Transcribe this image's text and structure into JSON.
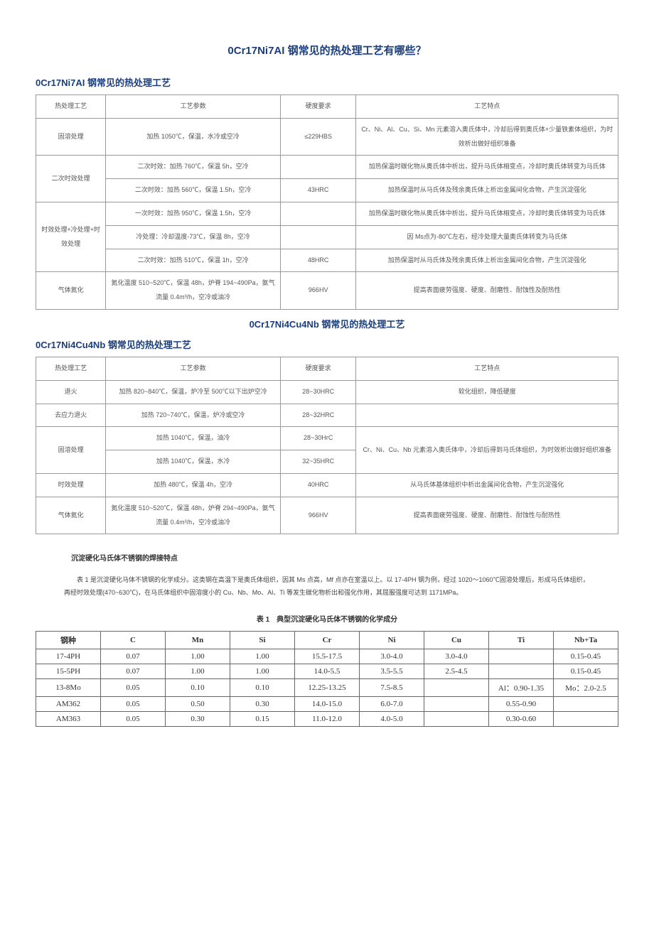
{
  "main_title": "0Cr17Ni7AI 钢常见的热处理工艺有哪些？",
  "section1_title": "0Cr17Ni7AI 钢常见的热处理工艺",
  "table1": {
    "headers": [
      "热处理工艺",
      "工艺参数",
      "硬度要求",
      "工艺特点"
    ],
    "col_widths": [
      "12%",
      "30%",
      "13%",
      "45%"
    ],
    "rows": [
      {
        "proc": "固溶处理",
        "param": "加热 1050℃，保温，水冷或空冷",
        "hard": "≤229HBS",
        "feat": "Cr、Ni、Al、Cu、Si、Mn 元素溶入奥氏体中，冷却后得到奥氏体+少量铁素体组织，为时效析出做好组织准备"
      },
      {
        "proc": "二次时效处理",
        "param": "二次时效：加热 760℃，保温 5h，空冷",
        "hard": "",
        "feat": "加热保温时碳化物从奥氏体中析出，提升马氏体相变点，冷却时奥氏体转变为马氏体"
      },
      {
        "proc": "",
        "param": "二次时效：加热 560℃，保温 1.5h，空冷",
        "hard": "43HRC",
        "feat": "加热保温时从马氏体及残余奥氏体上析出金属间化合物，产生沉淀强化"
      },
      {
        "proc": "时效处理+冷处理+时效处理",
        "param": "一次时效：加热 950℃，保温 1.5h，空冷",
        "hard": "",
        "feat": "加热保温时碳化物从奥氏体中析出，提升马氏体相变点，冷却时奥氏体转变为马氏体"
      },
      {
        "proc": "",
        "param": "冷处理：冷却温度-73℃，保温 8h，空冷",
        "hard": "",
        "feat": "因 Ms点为-80℃左右，经冷处理大量奥氏体转变为马氏体"
      },
      {
        "proc": "",
        "param": "二次时效：加热 510℃，保温 1h，空冷",
        "hard": "48HRC",
        "feat": "加热保温时从马氏体及残余奥氏体上析出金属间化合物，产生沉淀强化"
      },
      {
        "proc": "气体氮化",
        "param": "氮化温度 510~520℃，保温 48h，炉脊 194~490Pa，氨气流量 0.4m³/h，空冷或油冷",
        "hard": "966HV",
        "feat": "提高表面疲劳强度、硬度、耐磨性、耐蚀性及耐热性"
      }
    ]
  },
  "subtitle2": "0Cr17Ni4Cu4Nb 钢常见的热处理工艺",
  "section2_title": "0Cr17Ni4Cu4Nb 钢常见的热处理工艺",
  "table2": {
    "headers": [
      "热处理工艺",
      "工艺参数",
      "硬度要求",
      "工艺特点"
    ],
    "rows": [
      {
        "proc": "退火",
        "param": "加热 820~840℃，保温，炉冷至 500℃以下出炉空冷",
        "hard": "28~30HRC",
        "feat": "软化组织，降低硬度"
      },
      {
        "proc": "去应力退火",
        "param": "加热 720~740℃，保温，炉冷或空冷",
        "hard": "28~32HRC",
        "feat": ""
      },
      {
        "proc": "固溶处理",
        "param": "加热 1040℃，保温，油冷",
        "hard": "28~30HrC",
        "feat": "Cr、Ni、Cu、Nb 元素溶入奥氏体中，冷却后得到马氏体组织，为时效析出做好组织准备",
        "rowspan_feat": 2
      },
      {
        "proc": "",
        "param": "加热 1040℃，保温，水冷",
        "hard": "32~35HRC",
        "feat": ""
      },
      {
        "proc": "时效处理",
        "param": "加热 480℃，保温 4h，空冷",
        "hard": "40HRC",
        "feat": "从马氏体基体组织中析出金属间化合物，产生沉淀强化"
      },
      {
        "proc": "气体氮化",
        "param": "氮化温度 510~520℃，保温 48h，炉脊 294~490Pa，氨气流量 0.4m³/h，空冷或油冷",
        "hard": "966HV",
        "feat": "提高表面疲劳强度、硬度、耐磨性、耐蚀性与耐热性"
      }
    ]
  },
  "sub_heading": "沉淀硬化马氏体不锈钢的焊接特点",
  "paragraph": "表 1 是沉淀硬化马体不锈钢的化学成分。这类钢在高温下是奥氏体组织，因其 Ms 点高，Mf 点亦在室温以上。以 17-4PH 钢为例，经过 1020～1060℃固溶处理后，形成马氏体组织，再经时效处理(470~630℃)，在马氏体组织中固溶度小的 Cu、Nb、Mo、Al、Ti 等发生碳化物析出和强化作用，其屈服强度可达到 1171MPa。",
  "table3_caption": "表 1　典型沉淀硬化马氏体不锈钢的化学成分",
  "table3": {
    "headers": [
      "钢种",
      "C",
      "Mn",
      "Si",
      "Cr",
      "Ni",
      "Cu",
      "Ti",
      "Nb+Ta"
    ],
    "rows": [
      [
        "17-4PH",
        "0.07",
        "1.00",
        "1.00",
        "15.5-17.5",
        "3.0-4.0",
        "3.0-4.0",
        "",
        "0.15-0.45"
      ],
      [
        "15-5PH",
        "0.07",
        "1.00",
        "1.00",
        "14.0-5.5",
        "3.5-5.5",
        "2.5-4.5",
        "",
        "0.15-0.45"
      ],
      [
        "13-8Mo",
        "0.05",
        "0.10",
        "0.10",
        "12.25-13.25",
        "7.5-8.5",
        "",
        "Al：0.90-1.35",
        "Mo：2.0-2.5"
      ],
      [
        "AM362",
        "0.05",
        "0.50",
        "0.30",
        "14.0-15.0",
        "6.0-7.0",
        "",
        "0.55-0.90",
        ""
      ],
      [
        "AM363",
        "0.05",
        "0.30",
        "0.15",
        "11.0-12.0",
        "4.0-5.0",
        "",
        "0.30-0.60",
        ""
      ]
    ]
  }
}
